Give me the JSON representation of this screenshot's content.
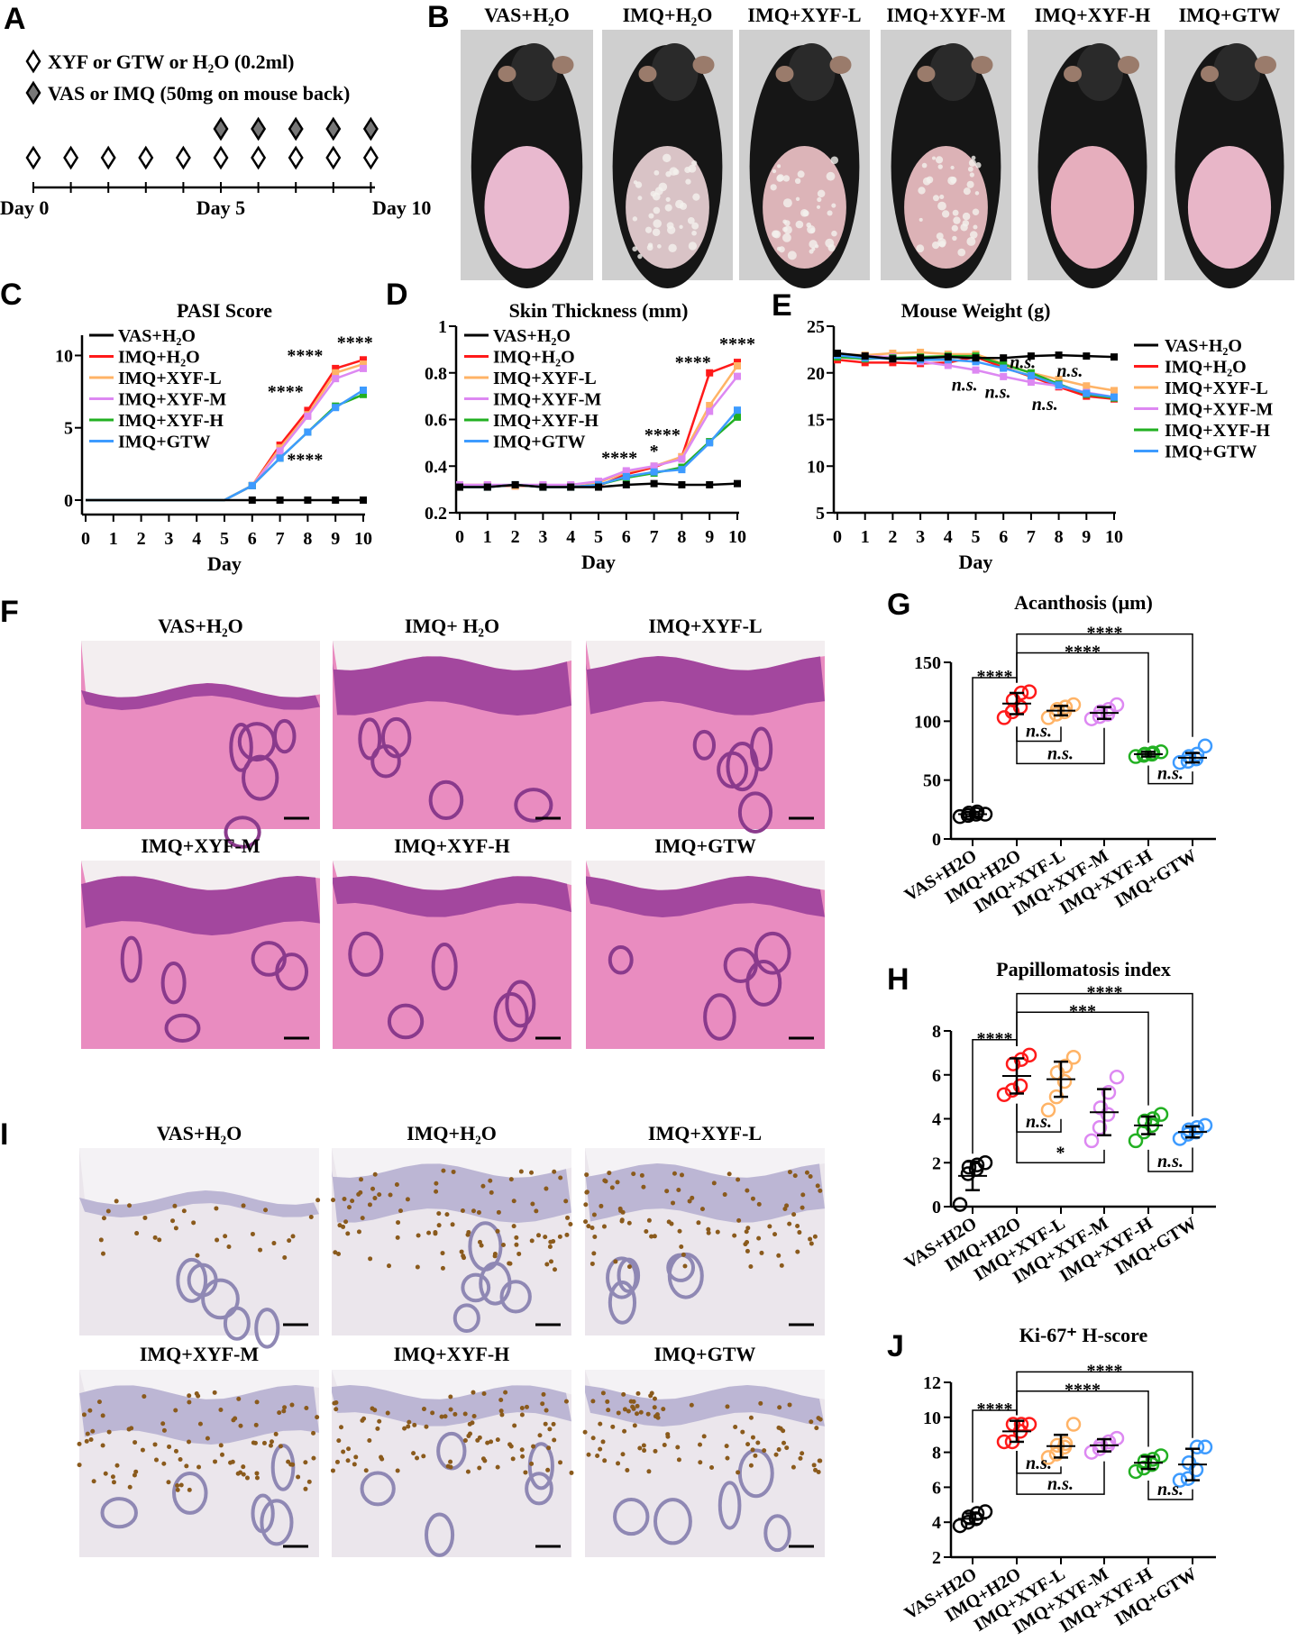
{
  "panel_letters": {
    "A": "A",
    "B": "B",
    "C": "C",
    "D": "D",
    "E": "E",
    "F": "F",
    "G": "G",
    "H": "H",
    "I": "I",
    "J": "J"
  },
  "groups": [
    "VAS+H₂O",
    "IMQ+H₂O",
    "IMQ+XYF-L",
    "IMQ+XYF-M",
    "IMQ+XYF-H",
    "IMQ+GTW"
  ],
  "group_axis_labels": [
    "VAS+H2O",
    "IMQ+H2O",
    "IMQ+XYF-L",
    "IMQ+XYF-M",
    "IMQ+XYF-H",
    "IMQ+GTW"
  ],
  "colors": [
    "#000000",
    "#ff1a1a",
    "#ffb366",
    "#dd88f2",
    "#22b022",
    "#3d9bff"
  ],
  "panel_a": {
    "legend": [
      {
        "symbol": "open-diamond",
        "text": "XYF or GTW or H₂O (0.2ml)"
      },
      {
        "symbol": "filled-diamond",
        "text": "VAS or IMQ (50mg on mouse back)"
      }
    ],
    "gavage_days": [
      0,
      1,
      2,
      3,
      4,
      5,
      6,
      7,
      8,
      9
    ],
    "topical_days": [
      5,
      6,
      7,
      8,
      9
    ],
    "day_labels": {
      "start": "Day 0",
      "mid": "Day 5",
      "end": "Day 10"
    }
  },
  "panel_b": {
    "labels": [
      "VAS+H₂O",
      "IMQ+H₂O",
      "IMQ+XYF-L",
      "IMQ+XYF-M",
      "IMQ+XYF-H",
      "IMQ+GTW"
    ]
  },
  "panel_f": {
    "labels": [
      "VAS+H₂O",
      "IMQ+ H₂O",
      "IMQ+XYF-L",
      "IMQ+XYF-M",
      "IMQ+XYF-H",
      "IMQ+GTW"
    ]
  },
  "panel_i": {
    "labels": [
      "VAS+H₂O",
      "IMQ+H₂O",
      "IMQ+XYF-L",
      "IMQ+XYF-M",
      "IMQ+XYF-H",
      "IMQ+GTW"
    ]
  },
  "chart_data": [
    {
      "id": "C",
      "type": "line",
      "title": "PASI Score",
      "xlabel": "Day",
      "ylabel": "",
      "x": [
        0,
        1,
        2,
        3,
        4,
        5,
        6,
        7,
        8,
        9,
        10
      ],
      "xticks": [
        0,
        1,
        2,
        3,
        4,
        5,
        6,
        7,
        8,
        9,
        10
      ],
      "ylim": [
        -1,
        11.4
      ],
      "yticks": [
        0,
        5,
        10
      ],
      "grid": false,
      "legend": "top-left",
      "series": [
        {
          "name": "VAS+H₂O",
          "values": [
            0,
            0,
            0,
            0,
            0,
            0,
            0,
            0,
            0,
            0,
            0
          ]
        },
        {
          "name": "IMQ+H₂O",
          "values": [
            0,
            0,
            0,
            0,
            0,
            0,
            1,
            3.8,
            6.2,
            9.1,
            9.7
          ]
        },
        {
          "name": "IMQ+XYF-L",
          "values": [
            0,
            0,
            0,
            0,
            0,
            0,
            1,
            3.6,
            5.9,
            8.8,
            9.4
          ]
        },
        {
          "name": "IMQ+XYF-M",
          "values": [
            0,
            0,
            0,
            0,
            0,
            0,
            1,
            3.4,
            5.8,
            8.4,
            9.1
          ]
        },
        {
          "name": "IMQ+XYF-H",
          "values": [
            0,
            0,
            0,
            0,
            0,
            0,
            1,
            2.9,
            4.7,
            6.5,
            7.3
          ]
        },
        {
          "name": "IMQ+GTW",
          "values": [
            0,
            0,
            0,
            0,
            0,
            0,
            1,
            2.9,
            4.7,
            6.4,
            7.6
          ]
        }
      ],
      "annotations": [
        {
          "text": "****",
          "x": 7.9,
          "y": 9.6
        },
        {
          "text": "****",
          "x": 9.7,
          "y": 10.5
        },
        {
          "text": "****",
          "x": 7.2,
          "y": 7.1
        },
        {
          "text": "****",
          "x": 7.9,
          "y": 2.4
        }
      ]
    },
    {
      "id": "D",
      "type": "line",
      "title": "Skin Thickness (mm)",
      "xlabel": "Day",
      "ylabel": "",
      "x": [
        0,
        1,
        2,
        3,
        4,
        5,
        6,
        7,
        8,
        9,
        10
      ],
      "xticks": [
        0,
        1,
        2,
        3,
        4,
        5,
        6,
        7,
        8,
        9,
        10
      ],
      "ylim": [
        0.2,
        1.0
      ],
      "yticks": [
        0.2,
        0.4,
        0.6,
        0.8,
        1.0
      ],
      "grid": false,
      "legend": "top-left",
      "series": [
        {
          "name": "VAS+H₂O",
          "values": [
            0.31,
            0.31,
            0.32,
            0.31,
            0.31,
            0.31,
            0.32,
            0.325,
            0.32,
            0.32,
            0.325
          ]
        },
        {
          "name": "IMQ+H₂O",
          "values": [
            0.31,
            0.315,
            0.315,
            0.315,
            0.315,
            0.315,
            0.365,
            0.395,
            0.44,
            0.8,
            0.845
          ]
        },
        {
          "name": "IMQ+XYF-L",
          "values": [
            0.32,
            0.32,
            0.315,
            0.32,
            0.315,
            0.33,
            0.375,
            0.4,
            0.44,
            0.66,
            0.83
          ]
        },
        {
          "name": "IMQ+XYF-M",
          "values": [
            0.32,
            0.32,
            0.32,
            0.32,
            0.32,
            0.335,
            0.38,
            0.4,
            0.43,
            0.635,
            0.785
          ]
        },
        {
          "name": "IMQ+XYF-H",
          "values": [
            0.31,
            0.31,
            0.32,
            0.31,
            0.31,
            0.32,
            0.35,
            0.37,
            0.395,
            0.505,
            0.61
          ]
        },
        {
          "name": "IMQ+GTW",
          "values": [
            0.31,
            0.31,
            0.32,
            0.31,
            0.31,
            0.32,
            0.355,
            0.375,
            0.385,
            0.5,
            0.64
          ]
        }
      ],
      "annotations": [
        {
          "text": "****",
          "x": 5.75,
          "y": 0.41
        },
        {
          "text": "*",
          "x": 7.0,
          "y": 0.44
        },
        {
          "text": "****",
          "x": 7.3,
          "y": 0.51
        },
        {
          "text": "****",
          "x": 8.4,
          "y": 0.82
        },
        {
          "text": "****",
          "x": 10.0,
          "y": 0.9
        }
      ]
    },
    {
      "id": "E",
      "type": "line",
      "title": "Mouse Weight (g)",
      "xlabel": "Day",
      "ylabel": "",
      "x": [
        0,
        1,
        2,
        3,
        4,
        5,
        6,
        7,
        8,
        9,
        10
      ],
      "xticks": [
        0,
        1,
        2,
        3,
        4,
        5,
        6,
        7,
        8,
        9,
        10
      ],
      "ylim": [
        5,
        25
      ],
      "yticks": [
        5,
        10,
        15,
        20,
        25
      ],
      "grid": false,
      "legend": "right",
      "series": [
        {
          "name": "VAS+H₂O",
          "values": [
            22.1,
            21.8,
            21.5,
            21.6,
            21.7,
            21.6,
            21.6,
            21.8,
            21.9,
            21.8,
            21.7
          ]
        },
        {
          "name": "IMQ+H₂O",
          "values": [
            21.4,
            21.1,
            21.1,
            21.0,
            21.1,
            21.7,
            20.6,
            19.6,
            18.5,
            17.5,
            17.2
          ]
        },
        {
          "name": "IMQ+XYF-L",
          "values": [
            22.0,
            21.9,
            22.1,
            22.2,
            22.0,
            22.0,
            21.0,
            20.0,
            19.3,
            18.6,
            18.1
          ]
        },
        {
          "name": "IMQ+XYF-M",
          "values": [
            21.9,
            21.8,
            21.7,
            21.2,
            20.8,
            20.3,
            19.6,
            19.0,
            18.6,
            17.9,
            17.4
          ]
        },
        {
          "name": "IMQ+XYF-H",
          "values": [
            21.7,
            21.5,
            21.6,
            21.7,
            21.8,
            21.8,
            20.9,
            20.0,
            18.8,
            17.7,
            17.3
          ]
        },
        {
          "name": "IMQ+GTW",
          "values": [
            21.9,
            21.6,
            21.5,
            21.4,
            21.4,
            21.2,
            20.5,
            19.7,
            18.7,
            17.8,
            17.4
          ]
        }
      ],
      "annotations": [
        {
          "text": "n.s.",
          "x": 6.7,
          "y": 20.5,
          "italic": true
        },
        {
          "text": "n.s.",
          "x": 8.4,
          "y": 19.6,
          "italic": true
        },
        {
          "text": "n.s.",
          "x": 4.6,
          "y": 18.1,
          "italic": true
        },
        {
          "text": "n.s.",
          "x": 5.8,
          "y": 17.3,
          "italic": true
        },
        {
          "text": "n.s.",
          "x": 7.5,
          "y": 16.0,
          "italic": true
        }
      ]
    },
    {
      "id": "G",
      "type": "scatter",
      "title": "Acanthosis (μm)",
      "ylim": [
        0,
        150
      ],
      "yticks": [
        0,
        50,
        100,
        150
      ],
      "categories": [
        "VAS+H2O",
        "IMQ+H2O",
        "IMQ+XYF-L",
        "IMQ+XYF-M",
        "IMQ+XYF-H",
        "IMQ+GTW"
      ],
      "points": [
        [
          19,
          20,
          21,
          22,
          23,
          21
        ],
        [
          103,
          108,
          112,
          118,
          124,
          125
        ],
        [
          103,
          106,
          108,
          110,
          112,
          114
        ],
        [
          102,
          104,
          106,
          108,
          110,
          114
        ],
        [
          70,
          71,
          72,
          72,
          73,
          74
        ],
        [
          65,
          66,
          68,
          70,
          72,
          79
        ]
      ],
      "mean": [
        21,
        115,
        109,
        107,
        72,
        69
      ],
      "sd": [
        2,
        9,
        4,
        5,
        2,
        4
      ],
      "comparisons": [
        {
          "from": 0,
          "to": 1,
          "label": "****",
          "y": 137,
          "side": "above"
        },
        {
          "from": 1,
          "to": 4,
          "label": "****",
          "y": 158,
          "side": "above"
        },
        {
          "from": 1,
          "to": 5,
          "label": "****",
          "y": 174,
          "side": "above"
        },
        {
          "from": 1,
          "to": 2,
          "label": "n.s.",
          "y": 83,
          "side": "below"
        },
        {
          "from": 1,
          "to": 3,
          "label": "n.s.",
          "y": 64,
          "side": "below"
        },
        {
          "from": 4,
          "to": 5,
          "label": "n.s.",
          "y": 47,
          "side": "below"
        }
      ]
    },
    {
      "id": "H",
      "type": "scatter",
      "title": "Papillomatosis index",
      "ylim": [
        0,
        8
      ],
      "yticks": [
        0,
        2,
        4,
        6,
        8
      ],
      "categories": [
        "VAS+H2O",
        "IMQ+H2O",
        "IMQ+XYF-L",
        "IMQ+XYF-M",
        "IMQ+XYF-H",
        "IMQ+GTW"
      ],
      "points": [
        [
          0.1,
          1.5,
          1.7,
          1.8,
          1.9,
          2.0
        ],
        [
          5.1,
          5.3,
          5.5,
          6.5,
          6.7,
          6.9
        ],
        [
          4.4,
          5.0,
          5.7,
          6.1,
          6.4,
          6.8
        ],
        [
          3.0,
          3.6,
          4.2,
          4.5,
          5.2,
          5.9
        ],
        [
          3.0,
          3.4,
          3.7,
          3.9,
          4.0,
          4.2
        ],
        [
          3.1,
          3.3,
          3.4,
          3.5,
          3.6,
          3.7
        ]
      ],
      "mean": [
        1.4,
        5.95,
        5.8,
        4.3,
        3.7,
        3.4
      ],
      "sd": [
        0.65,
        0.8,
        0.8,
        1.05,
        0.4,
        0.25
      ],
      "comparisons": [
        {
          "from": 0,
          "to": 1,
          "label": "****",
          "y": 7.6,
          "side": "above"
        },
        {
          "from": 1,
          "to": 4,
          "label": "***",
          "y": 8.85,
          "side": "above"
        },
        {
          "from": 1,
          "to": 5,
          "label": "****",
          "y": 9.7,
          "side": "above"
        },
        {
          "from": 1,
          "to": 2,
          "label": "n.s.",
          "y": 3.4,
          "side": "below"
        },
        {
          "from": 1,
          "to": 3,
          "label": "*",
          "y": 2.0,
          "side": "below"
        },
        {
          "from": 4,
          "to": 5,
          "label": "n.s.",
          "y": 1.6,
          "side": "below"
        }
      ]
    },
    {
      "id": "J",
      "type": "scatter",
      "title": "Ki-67⁺ H-score",
      "ylim": [
        2,
        12
      ],
      "yticks": [
        2,
        4,
        6,
        8,
        10,
        12
      ],
      "categories": [
        "VAS+H2O",
        "IMQ+H2O",
        "IMQ+XYF-L",
        "IMQ+XYF-M",
        "IMQ+XYF-H",
        "IMQ+GTW"
      ],
      "points": [
        [
          3.8,
          4.0,
          4.2,
          4.3,
          4.5,
          4.6
        ],
        [
          8.6,
          8.6,
          9.2,
          9.6,
          9.6,
          9.6
        ],
        [
          7.7,
          7.9,
          8.3,
          8.4,
          8.5,
          9.6
        ],
        [
          8.0,
          8.2,
          8.4,
          8.4,
          8.6,
          8.8
        ],
        [
          6.9,
          7.1,
          7.3,
          7.5,
          7.6,
          7.8
        ],
        [
          6.4,
          6.5,
          7.0,
          7.4,
          8.3,
          8.3
        ]
      ],
      "mean": [
        4.2,
        9.2,
        8.35,
        8.4,
        7.4,
        7.3
      ],
      "sd": [
        0.3,
        0.6,
        0.65,
        0.35,
        0.35,
        0.9
      ],
      "comparisons": [
        {
          "from": 0,
          "to": 1,
          "label": "****",
          "y": 10.4,
          "side": "above"
        },
        {
          "from": 1,
          "to": 4,
          "label": "****",
          "y": 11.5,
          "side": "above"
        },
        {
          "from": 1,
          "to": 5,
          "label": "****",
          "y": 12.6,
          "side": "above"
        },
        {
          "from": 1,
          "to": 2,
          "label": "n.s.",
          "y": 6.8,
          "side": "below"
        },
        {
          "from": 1,
          "to": 3,
          "label": "n.s.",
          "y": 5.6,
          "side": "below"
        },
        {
          "from": 4,
          "to": 5,
          "label": "n.s.",
          "y": 5.3,
          "side": "below"
        }
      ]
    }
  ]
}
